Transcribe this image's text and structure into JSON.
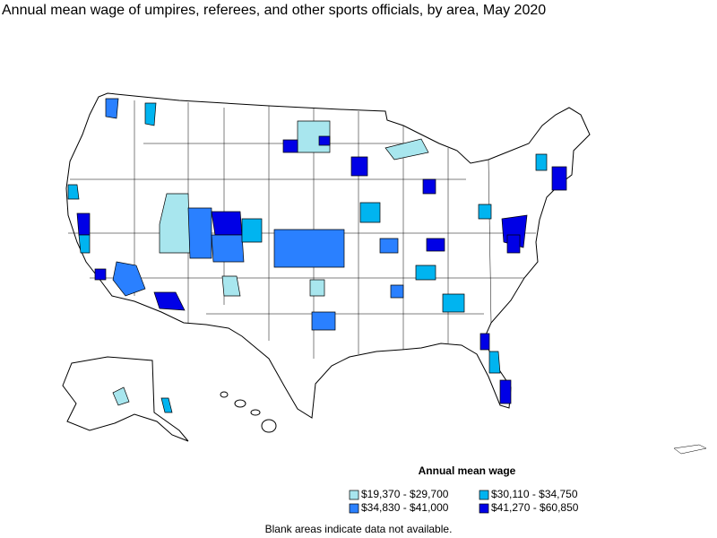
{
  "title": "Annual mean wage of umpires, referees, and other sports officials, by area, May 2020",
  "legend": {
    "title": "Annual mean wage",
    "items": [
      {
        "label": "$19,370 - $29,700",
        "color": "#a8e6ee"
      },
      {
        "label": "$30,110 - $34,750",
        "color": "#00b4f0"
      },
      {
        "label": "$34,830 - $41,000",
        "color": "#2a80ff"
      },
      {
        "label": "$41,270 - $60,850",
        "color": "#0000e6"
      }
    ]
  },
  "footnote": "Blank areas indicate data not available."
}
